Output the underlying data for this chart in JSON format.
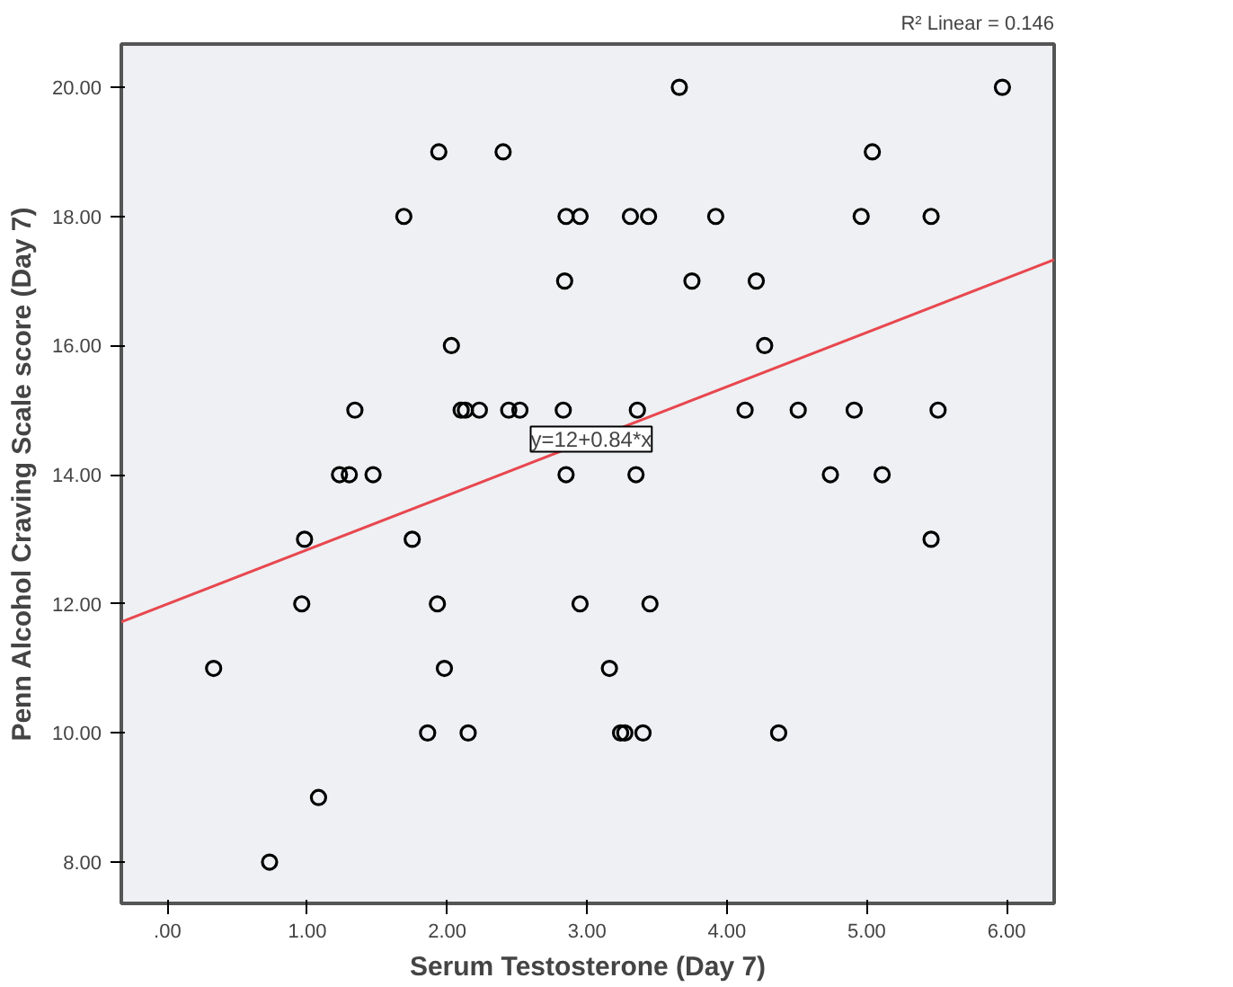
{
  "chart_data": {
    "type": "scatter",
    "xlabel": "Serum Testosterone (Day 7)",
    "ylabel": "Penn Alcohol Craving Scale score (Day 7)",
    "xlim": [
      -0.33,
      6.34
    ],
    "ylim": [
      7.36,
      20.67
    ],
    "xticks": [
      {
        "value": 0,
        "label": ".00"
      },
      {
        "value": 1,
        "label": "1.00"
      },
      {
        "value": 2,
        "label": "2.00"
      },
      {
        "value": 3,
        "label": "3.00"
      },
      {
        "value": 4,
        "label": "4.00"
      },
      {
        "value": 5,
        "label": "5.00"
      },
      {
        "value": 6,
        "label": "6.00"
      }
    ],
    "yticks": [
      {
        "value": 8,
        "label": "8.00"
      },
      {
        "value": 10,
        "label": "10.00"
      },
      {
        "value": 12,
        "label": "12.00"
      },
      {
        "value": 14,
        "label": "14.00"
      },
      {
        "value": 16,
        "label": "16.00"
      },
      {
        "value": 18,
        "label": "18.00"
      },
      {
        "value": 20,
        "label": "20.00"
      }
    ],
    "grid": false,
    "marker": "circle",
    "series": [
      {
        "color": "#000000",
        "x": [
          3.66,
          5.97,
          1.94,
          2.4,
          5.04,
          1.69,
          2.85,
          2.95,
          3.31,
          3.44,
          3.92,
          4.96,
          5.46,
          2.84,
          3.75,
          4.21,
          2.03,
          4.27,
          1.34,
          2.1,
          2.13,
          2.23,
          2.44,
          2.52,
          2.83,
          3.36,
          4.13,
          4.51,
          4.91,
          5.51,
          1.23,
          1.3,
          1.47,
          2.85,
          3.35,
          4.74,
          5.11,
          0.98,
          1.75,
          5.46,
          0.96,
          1.93,
          2.95,
          3.45,
          0.33,
          1.98,
          3.16,
          1.86,
          2.15,
          3.24,
          3.27,
          3.4,
          4.37,
          1.08,
          0.73
        ],
        "values": [
          20,
          20,
          19,
          19,
          19,
          18,
          18,
          18,
          18,
          18,
          18,
          18,
          18,
          17,
          17,
          17,
          16,
          16,
          15,
          15,
          15,
          15,
          15,
          15,
          15,
          15,
          15,
          15,
          15,
          15,
          14,
          14,
          14,
          14,
          14,
          14,
          14,
          13,
          13,
          13,
          12,
          12,
          12,
          12,
          11,
          11,
          11,
          10,
          10,
          10,
          10,
          10,
          10,
          9,
          8
        ]
      },
      {
        "type": "line",
        "color": "#e8474f",
        "line_style": "solid",
        "marker": "none",
        "x": [
          -0.33,
          6.34
        ],
        "values": [
          11.72,
          17.33
        ]
      }
    ],
    "annotations": [
      {
        "text": "y=12+0.84*x",
        "x": 3.03,
        "y": 14.55
      },
      "R² Linear = 0.146"
    ]
  }
}
